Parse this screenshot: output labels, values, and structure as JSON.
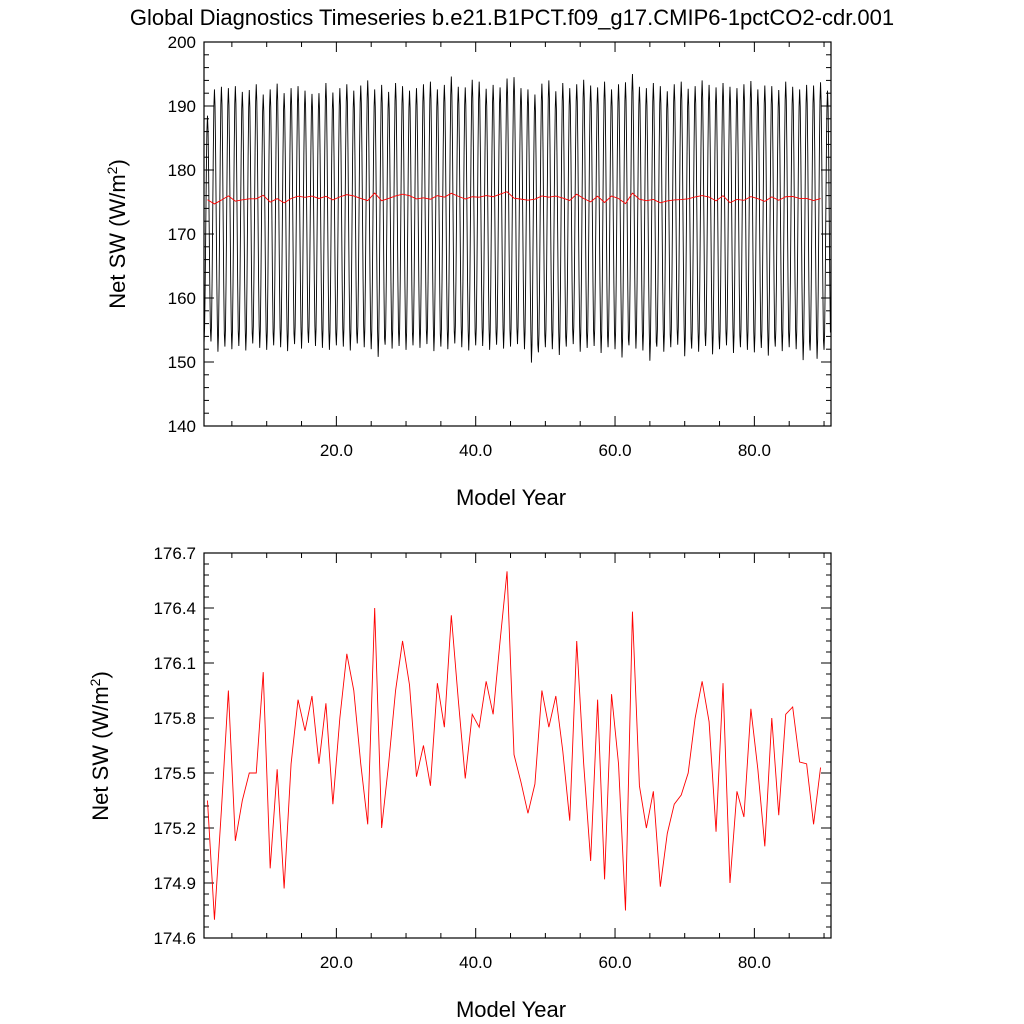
{
  "title": "Global Diagnostics Timeseries b.e21.B1PCT.f09_g17.CMIP6-1pctCO2-cdr.001",
  "chart_data": [
    {
      "type": "line",
      "xlabel": "Model Year",
      "ylabel": "Net SW (W/m",
      "ylabel_sup": "2",
      "ylabel_close": ")",
      "xlim": [
        1,
        91
      ],
      "ylim": [
        140,
        200
      ],
      "xticks": [
        20,
        40,
        60,
        80
      ],
      "xtick_labels": [
        "20.0",
        "40.0",
        "60.0",
        "80.0"
      ],
      "yticks": [
        140,
        150,
        160,
        170,
        180,
        190,
        200
      ],
      "ytick_labels": [
        "140",
        "150",
        "160",
        "170",
        "180",
        "190",
        "200"
      ],
      "grid": false,
      "series": [
        {
          "name": "",
          "color": "#000000",
          "kind": "monthly",
          "x_start": 1.0,
          "x_step": 0.0833,
          "annual_max": [
            188.5,
            192.6,
            193.0,
            192.8,
            193.1,
            192.2,
            192.5,
            193.4,
            191.8,
            192.6,
            193.5,
            192.0,
            192.8,
            193.1,
            192.4,
            191.9,
            192.0,
            193.6,
            192.1,
            192.8,
            193.4,
            192.4,
            193.2,
            194.0,
            192.6,
            193.3,
            192.2,
            193.6,
            193.1,
            192.4,
            192.8,
            193.4,
            193.8,
            192.6,
            193.3,
            194.6,
            193.0,
            192.9,
            194.1,
            193.8,
            192.7,
            193.3,
            192.9,
            194.3,
            194.5,
            192.8,
            192.6,
            191.8,
            193.5,
            194.0,
            192.3,
            193.6,
            192.8,
            193.4,
            194.1,
            193.2,
            192.9,
            193.8,
            192.6,
            193.4,
            193.7,
            195.0,
            193.0,
            192.8,
            193.6,
            193.1,
            192.3,
            193.4,
            193.8,
            192.7,
            193.1,
            194.0,
            193.3,
            192.9,
            193.6,
            193.0,
            192.8,
            193.4,
            193.9,
            192.6,
            193.2,
            193.1,
            192.5,
            193.8,
            193.0,
            192.6,
            193.3,
            193.2,
            193.7,
            192.4
          ],
          "annual_min": [
            152.8,
            153.2,
            151.6,
            152.4,
            152.0,
            152.5,
            151.8,
            152.9,
            152.2,
            151.9,
            152.6,
            152.3,
            151.7,
            152.8,
            152.1,
            153.0,
            152.5,
            152.2,
            151.9,
            152.6,
            152.4,
            151.8,
            152.9,
            152.3,
            152.0,
            150.8,
            152.7,
            152.1,
            152.5,
            151.9,
            152.6,
            152.2,
            152.8,
            151.7,
            152.4,
            152.0,
            152.9,
            152.3,
            151.8,
            152.6,
            152.5,
            151.9,
            152.7,
            152.1,
            152.4,
            152.8,
            152.0,
            149.9,
            151.5,
            152.3,
            152.0,
            151.1,
            152.4,
            152.8,
            151.6,
            152.2,
            152.5,
            151.4,
            152.3,
            152.0,
            150.7,
            152.6,
            152.1,
            151.8,
            150.2,
            152.4,
            151.6,
            152.3,
            152.7,
            150.9,
            152.1,
            151.6,
            152.5,
            151.2,
            152.0,
            152.6,
            151.4,
            152.3,
            151.9,
            151.5,
            152.2,
            151.0,
            152.4,
            151.7,
            152.3,
            152.0,
            150.3,
            151.8,
            150.5,
            151.9
          ]
        },
        {
          "name": "",
          "color": "#ff0000",
          "kind": "annual",
          "x_start": 1.5,
          "x_step": 1.0,
          "values": [
            175.35,
            174.7,
            175.3,
            175.95,
            175.13,
            175.35,
            175.5,
            175.5,
            176.05,
            174.98,
            175.52,
            174.87,
            175.55,
            175.9,
            175.73,
            175.92,
            175.55,
            175.88,
            175.33,
            175.8,
            176.15,
            175.95,
            175.55,
            175.22,
            176.4,
            175.2,
            175.55,
            175.95,
            176.22,
            175.98,
            175.48,
            175.65,
            175.43,
            175.99,
            175.75,
            176.36,
            175.9,
            175.47,
            175.82,
            175.75,
            176.0,
            175.82,
            176.22,
            176.6,
            175.6,
            175.45,
            175.28,
            175.44,
            175.95,
            175.75,
            175.92,
            175.62,
            175.24,
            176.22,
            175.55,
            175.02,
            175.9,
            174.92,
            175.93,
            175.55,
            174.75,
            176.38,
            175.43,
            175.2,
            175.4,
            174.88,
            175.17,
            175.33,
            175.38,
            175.5,
            175.8,
            176.0,
            175.78,
            175.18,
            175.99,
            174.9,
            175.4,
            175.26,
            175.85,
            175.52,
            175.1,
            175.8,
            175.27,
            175.82,
            175.86,
            175.56,
            175.55,
            175.22,
            175.53
          ]
        }
      ]
    },
    {
      "type": "line",
      "xlabel": "Model Year",
      "ylabel": "Net SW (W/m",
      "ylabel_sup": "2",
      "ylabel_close": ")",
      "xlim": [
        1,
        91
      ],
      "ylim": [
        174.6,
        176.7
      ],
      "xticks": [
        20,
        40,
        60,
        80
      ],
      "xtick_labels": [
        "20.0",
        "40.0",
        "60.0",
        "80.0"
      ],
      "yticks": [
        174.6,
        174.9,
        175.2,
        175.5,
        175.8,
        176.1,
        176.4,
        176.7
      ],
      "ytick_labels": [
        "174.6",
        "174.9",
        "175.2",
        "175.5",
        "175.8",
        "176.1",
        "176.4",
        "176.7"
      ],
      "grid": false,
      "series": [
        {
          "name": "",
          "color": "#ff0000",
          "kind": "annual",
          "x_start": 1.5,
          "x_step": 1.0,
          "values": [
            175.35,
            174.7,
            175.3,
            175.95,
            175.13,
            175.35,
            175.5,
            175.5,
            176.05,
            174.98,
            175.52,
            174.87,
            175.55,
            175.9,
            175.73,
            175.92,
            175.55,
            175.88,
            175.33,
            175.8,
            176.15,
            175.95,
            175.55,
            175.22,
            176.4,
            175.2,
            175.55,
            175.95,
            176.22,
            175.98,
            175.48,
            175.65,
            175.43,
            175.99,
            175.75,
            176.36,
            175.9,
            175.47,
            175.82,
            175.75,
            176.0,
            175.82,
            176.22,
            176.6,
            175.6,
            175.45,
            175.28,
            175.44,
            175.95,
            175.75,
            175.92,
            175.62,
            175.24,
            176.22,
            175.55,
            175.02,
            175.9,
            174.92,
            175.93,
            175.55,
            174.75,
            176.38,
            175.43,
            175.2,
            175.4,
            174.88,
            175.17,
            175.33,
            175.38,
            175.5,
            175.8,
            176.0,
            175.78,
            175.18,
            175.99,
            174.9,
            175.4,
            175.26,
            175.85,
            175.52,
            175.1,
            175.8,
            175.27,
            175.82,
            175.86,
            175.56,
            175.55,
            175.22,
            175.53
          ]
        }
      ]
    }
  ]
}
